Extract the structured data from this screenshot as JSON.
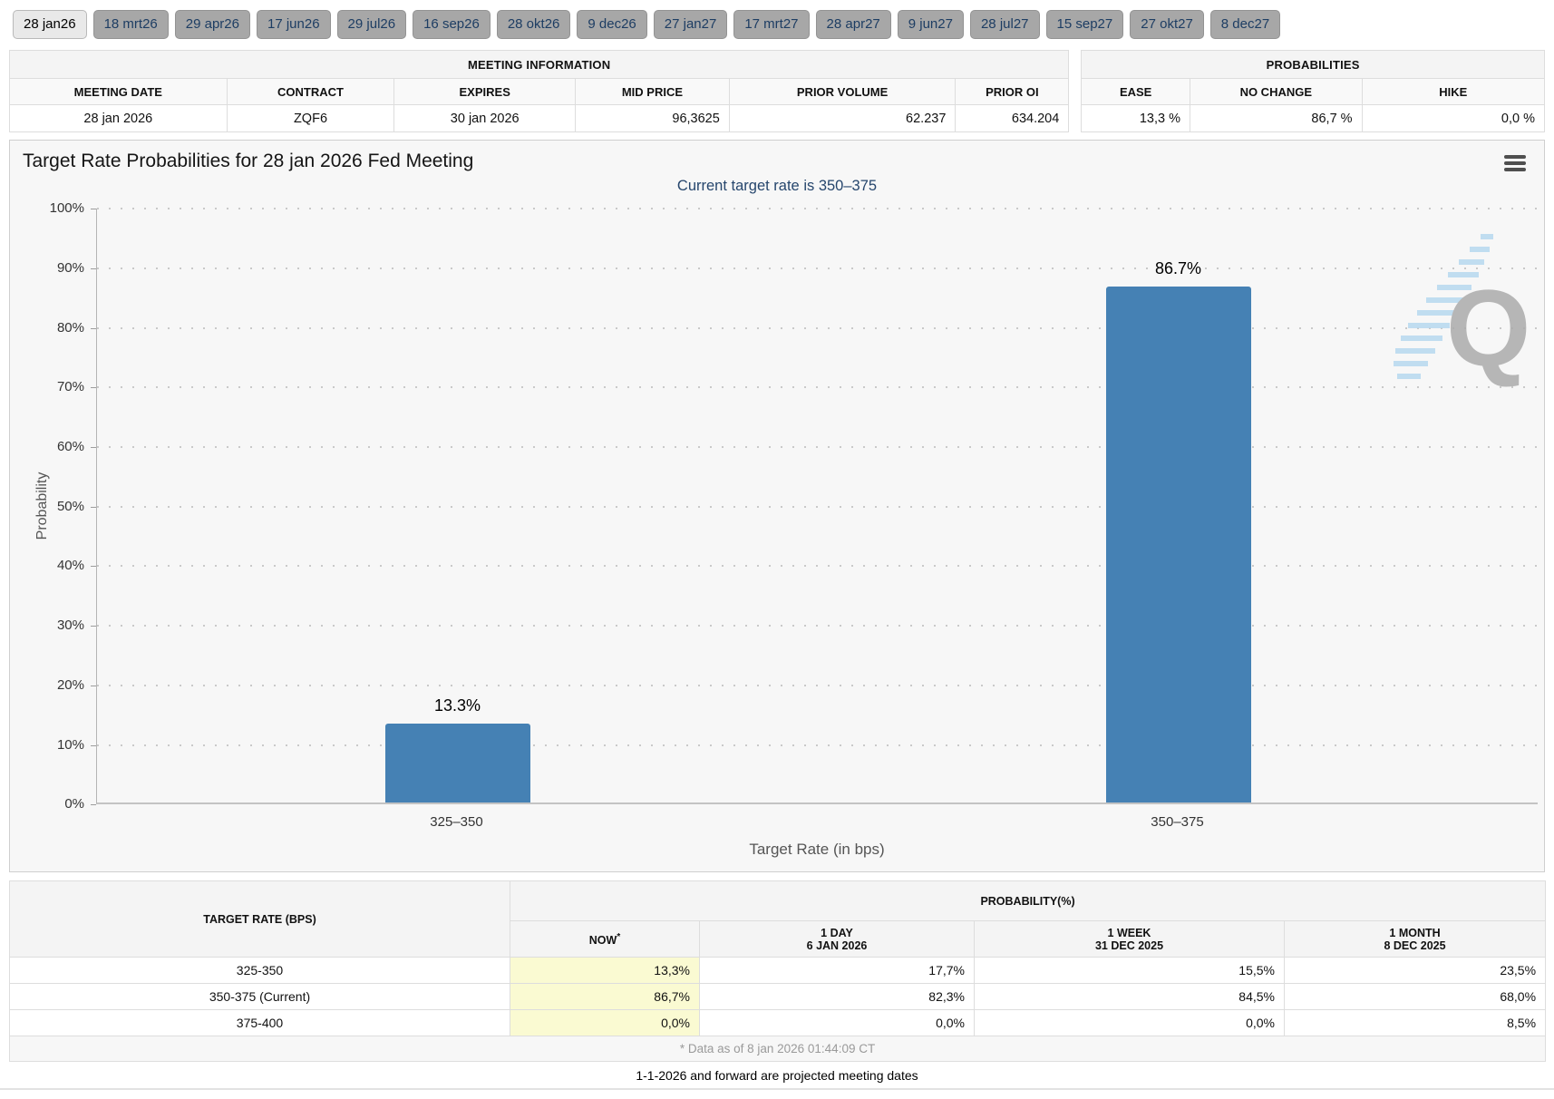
{
  "tabs": {
    "items": [
      {
        "label": "28 jan26",
        "active": true
      },
      {
        "label": "18 mrt26",
        "active": false
      },
      {
        "label": "29 apr26",
        "active": false
      },
      {
        "label": "17 jun26",
        "active": false
      },
      {
        "label": "29 jul26",
        "active": false
      },
      {
        "label": "16 sep26",
        "active": false
      },
      {
        "label": "28 okt26",
        "active": false
      },
      {
        "label": "9 dec26",
        "active": false
      },
      {
        "label": "27 jan27",
        "active": false
      },
      {
        "label": "17 mrt27",
        "active": false
      },
      {
        "label": "28 apr27",
        "active": false
      },
      {
        "label": "9 jun27",
        "active": false
      },
      {
        "label": "28 jul27",
        "active": false
      },
      {
        "label": "15 sep27",
        "active": false
      },
      {
        "label": "27 okt27",
        "active": false
      },
      {
        "label": "8 dec27",
        "active": false
      }
    ]
  },
  "meeting_info": {
    "title": "MEETING INFORMATION",
    "columns": [
      "MEETING DATE",
      "CONTRACT",
      "EXPIRES",
      "MID PRICE",
      "PRIOR VOLUME",
      "PRIOR OI"
    ],
    "row": {
      "meeting_date": "28 jan 2026",
      "contract": "ZQF6",
      "expires": "30 jan 2026",
      "mid_price": "96,3625",
      "prior_volume": "62.237",
      "prior_oi": "634.204"
    }
  },
  "probabilities_summary": {
    "title": "PROBABILITIES",
    "columns": [
      "EASE",
      "NO CHANGE",
      "HIKE"
    ],
    "row": {
      "ease": "13,3 %",
      "no_change": "86,7 %",
      "hike": "0,0 %"
    }
  },
  "chart": {
    "title": "Target Rate Probabilities for 28 jan 2026 Fed Meeting",
    "subtitle": "Current target rate is 350–375",
    "subtitle_color": "#26466d",
    "watermark_letter": "Q"
  },
  "chart_data": {
    "type": "bar",
    "categories": [
      "325–350",
      "350–375"
    ],
    "values": [
      13.3,
      86.7
    ],
    "bar_labels": [
      "13.3%",
      "86.7%"
    ],
    "title": "Target Rate Probabilities for 28 jan 2026 Fed Meeting",
    "subtitle": "Current target rate is 350–375",
    "xlabel": "Target Rate (in bps)",
    "ylabel": "Probability",
    "ylim": [
      0,
      100
    ],
    "ytick_step": 10,
    "ytick_suffix": "%",
    "grid": "dotted-horizontal",
    "legend": "none",
    "bar_color": "#4581b4"
  },
  "bottom_table": {
    "rate_header": "TARGET RATE (BPS)",
    "prob_header": "PROBABILITY(%)",
    "col_headers": [
      {
        "line1": "NOW",
        "sup": "*",
        "line2": ""
      },
      {
        "line1": "1 DAY",
        "line2": "6 JAN 2026"
      },
      {
        "line1": "1 WEEK",
        "line2": "31 DEC 2025"
      },
      {
        "line1": "1 MONTH",
        "line2": "8 DEC 2025"
      }
    ],
    "rows": [
      {
        "rate": "325-350",
        "now": "13,3%",
        "d1": "17,7%",
        "w1": "15,5%",
        "m1": "23,5%"
      },
      {
        "rate": "350-375 (Current)",
        "now": "86,7%",
        "d1": "82,3%",
        "w1": "84,5%",
        "m1": "68,0%"
      },
      {
        "rate": "375-400",
        "now": "0,0%",
        "d1": "0,0%",
        "w1": "0,0%",
        "m1": "8,5%"
      }
    ],
    "footnote": "* Data as of 8 jan 2026 01:44:09 CT"
  },
  "footer_note": "1-1-2026 and forward are projected meeting dates"
}
